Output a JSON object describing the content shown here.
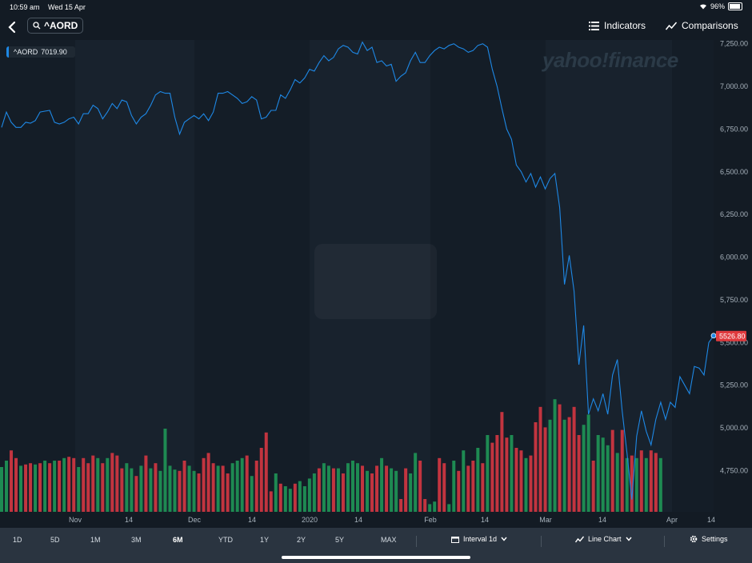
{
  "status": {
    "time": "10:59 am",
    "date": "Wed 15 Apr",
    "battery": "96%",
    "battery_level": 0.96
  },
  "header": {
    "search_text": "^AORD",
    "indicators": "Indicators",
    "comparisons": "Comparisons"
  },
  "legend": {
    "symbol": "^AORD",
    "value": "7019.90"
  },
  "watermark": "yahoo!finance",
  "last_price_label": "5526.80",
  "colors": {
    "line": "#1e88e5",
    "vol_up": "#1e8a52",
    "vol_down": "#c2343f",
    "bg": "#131b24",
    "price_tag": "#e03a3e"
  },
  "ranges": [
    "1D",
    "5D",
    "1M",
    "3M",
    "6M",
    "YTD",
    "1Y",
    "2Y",
    "5Y",
    "MAX"
  ],
  "active_range": "6M",
  "controls": {
    "interval": "Interval 1d",
    "chart_type": "Line Chart",
    "settings": "Settings"
  },
  "chart_data": {
    "type": "line",
    "y_ticks": [
      "7,250.00",
      "7,000.00",
      "6,750.00",
      "6,500.00",
      "6,250.00",
      "6,000.00",
      "5,750.00",
      "5,500.00",
      "5,250.00",
      "5,000.00",
      "4,750.00"
    ],
    "x_ticks": [
      "Nov",
      "14",
      "Dec",
      "14",
      "2020",
      "14",
      "Feb",
      "14",
      "Mar",
      "14",
      "Apr",
      "14"
    ],
    "ylim": [
      4550,
      7280
    ],
    "series": [
      {
        "values": [
          6760,
          6850,
          6790,
          6760,
          6760,
          6790,
          6785,
          6800,
          6850,
          6855,
          6860,
          6790,
          6780,
          6790,
          6810,
          6820,
          6780,
          6840,
          6840,
          6890,
          6870,
          6810,
          6850,
          6900,
          6870,
          6920,
          6910,
          6830,
          6780,
          6820,
          6840,
          6890,
          6950,
          6970,
          6960,
          6960,
          6820,
          6720,
          6790,
          6810,
          6830,
          6810,
          6840,
          6800,
          6850,
          6960,
          6960,
          6970,
          6950,
          6930,
          6900,
          6910,
          6940,
          6920,
          6810,
          6820,
          6860,
          6860,
          6950,
          6930,
          6980,
          7040,
          7020,
          7050,
          7100,
          7090,
          7140,
          7180,
          7150,
          7170,
          7220,
          7240,
          7230,
          7200,
          7190,
          7260,
          7210,
          7230,
          7140,
          7150,
          7120,
          7130,
          7030,
          7060,
          7080,
          7150,
          7200,
          7140,
          7140,
          7180,
          7210,
          7230,
          7220,
          7240,
          7250,
          7230,
          7220,
          7200,
          7210,
          7240,
          7250,
          7230,
          7100,
          7000,
          6870,
          6750,
          6690,
          6540,
          6500,
          6440,
          6490,
          6410,
          6470,
          6400,
          6460,
          6490,
          6290,
          5840,
          6010,
          5800,
          5370,
          5600,
          5080,
          5170,
          5100,
          5200,
          5080,
          5310,
          5400,
          5100,
          4850,
          4580,
          4950,
          5100,
          4980,
          4900,
          5050,
          5150,
          5050,
          5150,
          5120,
          5300,
          5250,
          5200,
          5360,
          5350,
          5310,
          5500,
          5540
        ]
      }
    ],
    "volume": [
      {
        "v": 0.35,
        "u": true
      },
      {
        "v": 0.4,
        "u": true
      },
      {
        "v": 0.48,
        "u": false
      },
      {
        "v": 0.42,
        "u": false
      },
      {
        "v": 0.36,
        "u": true
      },
      {
        "v": 0.37,
        "u": false
      },
      {
        "v": 0.38,
        "u": false
      },
      {
        "v": 0.37,
        "u": true
      },
      {
        "v": 0.38,
        "u": false
      },
      {
        "v": 0.4,
        "u": true
      },
      {
        "v": 0.38,
        "u": false
      },
      {
        "v": 0.4,
        "u": true
      },
      {
        "v": 0.4,
        "u": false
      },
      {
        "v": 0.42,
        "u": true
      },
      {
        "v": 0.43,
        "u": false
      },
      {
        "v": 0.42,
        "u": false
      },
      {
        "v": 0.35,
        "u": true
      },
      {
        "v": 0.42,
        "u": false
      },
      {
        "v": 0.38,
        "u": false
      },
      {
        "v": 0.44,
        "u": false
      },
      {
        "v": 0.42,
        "u": true
      },
      {
        "v": 0.38,
        "u": false
      },
      {
        "v": 0.42,
        "u": true
      },
      {
        "v": 0.46,
        "u": false
      },
      {
        "v": 0.44,
        "u": false
      },
      {
        "v": 0.34,
        "u": false
      },
      {
        "v": 0.38,
        "u": true
      },
      {
        "v": 0.34,
        "u": true
      },
      {
        "v": 0.28,
        "u": false
      },
      {
        "v": 0.36,
        "u": true
      },
      {
        "v": 0.44,
        "u": false
      },
      {
        "v": 0.34,
        "u": true
      },
      {
        "v": 0.38,
        "u": false
      },
      {
        "v": 0.32,
        "u": true
      },
      {
        "v": 0.65,
        "u": true
      },
      {
        "v": 0.36,
        "u": true
      },
      {
        "v": 0.33,
        "u": true
      },
      {
        "v": 0.32,
        "u": false
      },
      {
        "v": 0.4,
        "u": false
      },
      {
        "v": 0.36,
        "u": true
      },
      {
        "v": 0.32,
        "u": true
      },
      {
        "v": 0.3,
        "u": false
      },
      {
        "v": 0.42,
        "u": false
      },
      {
        "v": 0.46,
        "u": false
      },
      {
        "v": 0.38,
        "u": false
      },
      {
        "v": 0.36,
        "u": true
      },
      {
        "v": 0.36,
        "u": false
      },
      {
        "v": 0.3,
        "u": false
      },
      {
        "v": 0.38,
        "u": true
      },
      {
        "v": 0.4,
        "u": true
      },
      {
        "v": 0.42,
        "u": true
      },
      {
        "v": 0.44,
        "u": false
      },
      {
        "v": 0.28,
        "u": true
      },
      {
        "v": 0.4,
        "u": false
      },
      {
        "v": 0.5,
        "u": false
      },
      {
        "v": 0.62,
        "u": false
      },
      {
        "v": 0.16,
        "u": false
      },
      {
        "v": 0.3,
        "u": true
      },
      {
        "v": 0.22,
        "u": false
      },
      {
        "v": 0.2,
        "u": true
      },
      {
        "v": 0.18,
        "u": true
      },
      {
        "v": 0.22,
        "u": false
      },
      {
        "v": 0.24,
        "u": true
      },
      {
        "v": 0.2,
        "u": true
      },
      {
        "v": 0.26,
        "u": true
      },
      {
        "v": 0.3,
        "u": true
      },
      {
        "v": 0.34,
        "u": false
      },
      {
        "v": 0.38,
        "u": true
      },
      {
        "v": 0.36,
        "u": true
      },
      {
        "v": 0.34,
        "u": false
      },
      {
        "v": 0.34,
        "u": true
      },
      {
        "v": 0.3,
        "u": false
      },
      {
        "v": 0.38,
        "u": true
      },
      {
        "v": 0.4,
        "u": true
      },
      {
        "v": 0.38,
        "u": true
      },
      {
        "v": 0.36,
        "u": false
      },
      {
        "v": 0.32,
        "u": true
      },
      {
        "v": 0.3,
        "u": false
      },
      {
        "v": 0.36,
        "u": false
      },
      {
        "v": 0.42,
        "u": true
      },
      {
        "v": 0.36,
        "u": false
      },
      {
        "v": 0.34,
        "u": true
      },
      {
        "v": 0.32,
        "u": true
      },
      {
        "v": 0.1,
        "u": false
      },
      {
        "v": 0.34,
        "u": false
      },
      {
        "v": 0.3,
        "u": true
      },
      {
        "v": 0.46,
        "u": true
      },
      {
        "v": 0.4,
        "u": false
      },
      {
        "v": 0.1,
        "u": false
      },
      {
        "v": 0.06,
        "u": true
      },
      {
        "v": 0.08,
        "u": true
      },
      {
        "v": 0.42,
        "u": false
      },
      {
        "v": 0.38,
        "u": false
      },
      {
        "v": 0.06,
        "u": true
      },
      {
        "v": 0.4,
        "u": true
      },
      {
        "v": 0.32,
        "u": false
      },
      {
        "v": 0.48,
        "u": true
      },
      {
        "v": 0.36,
        "u": false
      },
      {
        "v": 0.4,
        "u": false
      },
      {
        "v": 0.5,
        "u": true
      },
      {
        "v": 0.38,
        "u": false
      },
      {
        "v": 0.6,
        "u": true
      },
      {
        "v": 0.54,
        "u": false
      },
      {
        "v": 0.6,
        "u": false
      },
      {
        "v": 0.78,
        "u": false
      },
      {
        "v": 0.58,
        "u": false
      },
      {
        "v": 0.6,
        "u": true
      },
      {
        "v": 0.5,
        "u": false
      },
      {
        "v": 0.48,
        "u": false
      },
      {
        "v": 0.42,
        "u": true
      },
      {
        "v": 0.44,
        "u": false
      },
      {
        "v": 0.7,
        "u": false
      },
      {
        "v": 0.82,
        "u": false
      },
      {
        "v": 0.66,
        "u": false
      },
      {
        "v": 0.72,
        "u": true
      },
      {
        "v": 0.88,
        "u": true
      },
      {
        "v": 0.84,
        "u": false
      },
      {
        "v": 0.72,
        "u": true
      },
      {
        "v": 0.74,
        "u": false
      },
      {
        "v": 0.82,
        "u": false
      },
      {
        "v": 0.6,
        "u": false
      },
      {
        "v": 0.68,
        "u": true
      },
      {
        "v": 0.76,
        "u": true
      },
      {
        "v": 0.4,
        "u": false
      },
      {
        "v": 0.6,
        "u": true
      },
      {
        "v": 0.58,
        "u": true
      },
      {
        "v": 0.52,
        "u": true
      },
      {
        "v": 0.64,
        "u": false
      },
      {
        "v": 0.46,
        "u": true
      },
      {
        "v": 0.64,
        "u": false
      },
      {
        "v": 0.42,
        "u": true
      },
      {
        "v": 0.44,
        "u": false
      },
      {
        "v": 0.42,
        "u": true
      },
      {
        "v": 0.48,
        "u": false
      },
      {
        "v": 0.42,
        "u": true
      },
      {
        "v": 0.48,
        "u": false
      },
      {
        "v": 0.46,
        "u": false
      },
      {
        "v": 0.42,
        "u": true
      }
    ]
  }
}
